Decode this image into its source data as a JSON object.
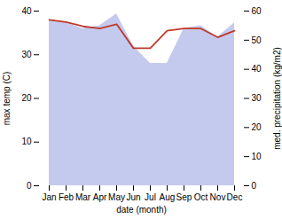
{
  "chart_data": {
    "type": "line",
    "xlabel": "date (month)",
    "ylabel": "max temp (C)",
    "y2label": "med. precipitation (kg/m2)",
    "categories": [
      "Jan",
      "Feb",
      "Mar",
      "Apr",
      "May",
      "Jun",
      "Jul",
      "Aug",
      "Sep",
      "Oct",
      "Nov",
      "Dec"
    ],
    "series": [
      {
        "type": "area",
        "axis": "y2",
        "color": "#b0b8e8",
        "values": [
          57,
          56,
          54,
          55,
          59,
          48,
          42,
          42,
          54,
          55,
          51,
          56
        ]
      },
      {
        "type": "line",
        "axis": "y",
        "color": "#c0392b",
        "values": [
          38.0,
          37.5,
          36.5,
          36.0,
          37.0,
          31.5,
          31.5,
          35.5,
          36.0,
          36.0,
          34.0,
          35.5
        ]
      }
    ],
    "ylim": [
      0,
      40
    ],
    "yticks": [
      0,
      10,
      20,
      30,
      40
    ],
    "y2lim": [
      0,
      60
    ],
    "y2ticks": [
      0,
      10,
      20,
      30,
      40,
      50,
      60
    ],
    "grid": false
  }
}
